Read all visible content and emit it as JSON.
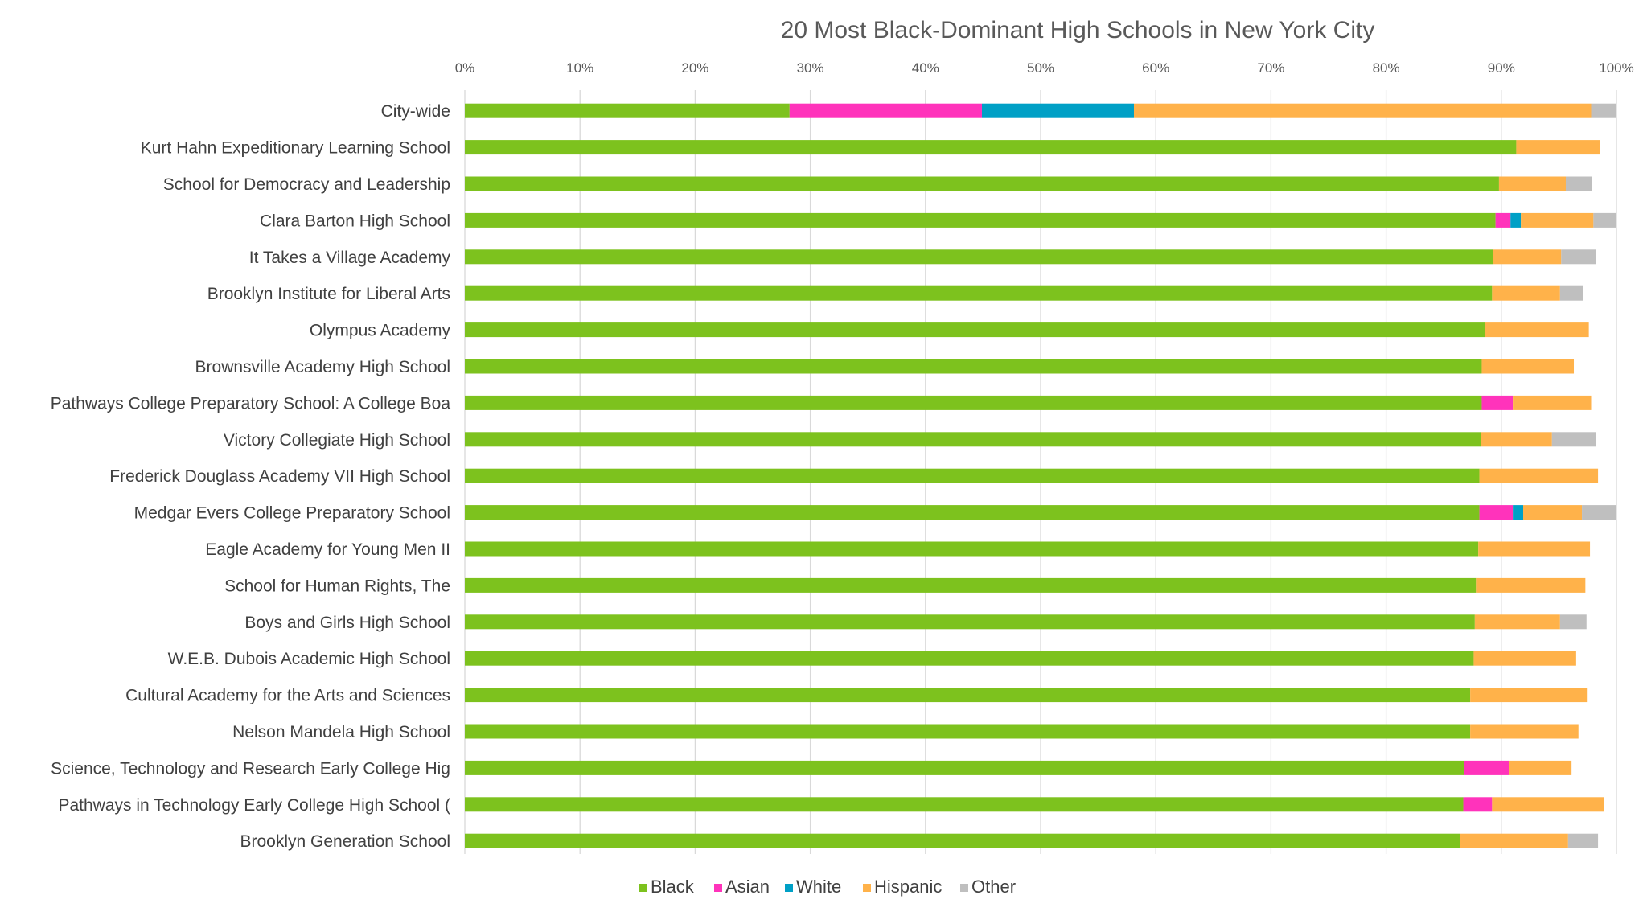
{
  "chart_data": {
    "type": "bar",
    "orientation": "horizontal",
    "stacked": true,
    "title": "20 Most Black-Dominant High Schools in New York City",
    "xlim": [
      0,
      100
    ],
    "x_ticks": [
      "0%",
      "10%",
      "20%",
      "30%",
      "40%",
      "50%",
      "60%",
      "70%",
      "80%",
      "90%",
      "100%"
    ],
    "grid": true,
    "legend_position": "bottom",
    "categories": [
      "City-wide",
      "Kurt Hahn Expeditionary Learning School",
      "School for Democracy and Leadership",
      "Clara Barton High School",
      "It Takes a Village Academy",
      "Brooklyn Institute for Liberal Arts",
      "Olympus Academy",
      "Brownsville Academy High School",
      "Pathways College Preparatory School: A College Boa",
      "Victory Collegiate High School",
      "Frederick Douglass Academy VII High School",
      "Medgar Evers College Preparatory School",
      "Eagle Academy for Young Men II",
      "School for Human Rights, The",
      "Boys and Girls High School",
      "W.E.B. Dubois Academic High School",
      "Cultural Academy for the Arts and Sciences",
      "Nelson Mandela High School",
      "Science, Technology and Research Early College Hig",
      "Pathways in Technology Early College High School (",
      "Brooklyn Generation School"
    ],
    "series": [
      {
        "name": "Black",
        "color": "#7dc21e",
        "values": [
          28.2,
          91.3,
          89.8,
          89.5,
          89.3,
          89.2,
          88.6,
          88.3,
          88.3,
          88.2,
          88.1,
          88.1,
          88.0,
          87.8,
          87.7,
          87.6,
          87.3,
          87.3,
          86.8,
          86.7,
          86.4
        ]
      },
      {
        "name": "Asian",
        "color": "#ff33bb",
        "values": [
          16.7,
          0,
          0,
          1.3,
          0,
          0,
          0,
          0,
          2.7,
          0,
          0,
          2.9,
          0,
          0,
          0,
          0,
          0,
          0,
          3.9,
          2.5,
          0
        ]
      },
      {
        "name": "White",
        "color": "#00a0c6",
        "values": [
          13.2,
          0,
          0,
          0.9,
          0,
          0,
          0,
          0,
          0,
          0,
          0,
          0.9,
          0,
          0,
          0,
          0,
          0,
          0,
          0,
          0,
          0
        ]
      },
      {
        "name": "Hispanic",
        "color": "#ffb24a",
        "values": [
          39.7,
          7.3,
          5.8,
          6.3,
          5.9,
          5.9,
          9.0,
          8.0,
          6.8,
          6.2,
          10.3,
          5.1,
          9.7,
          9.5,
          7.4,
          8.9,
          10.2,
          9.4,
          5.4,
          9.7,
          9.4
        ]
      },
      {
        "name": "Other",
        "color": "#bfbfbf",
        "values": [
          2.2,
          0,
          2.3,
          2.0,
          3.0,
          2.0,
          0,
          0,
          0,
          3.8,
          0,
          3.0,
          0,
          0,
          2.3,
          0,
          0,
          0,
          0,
          0,
          2.6
        ]
      }
    ]
  }
}
